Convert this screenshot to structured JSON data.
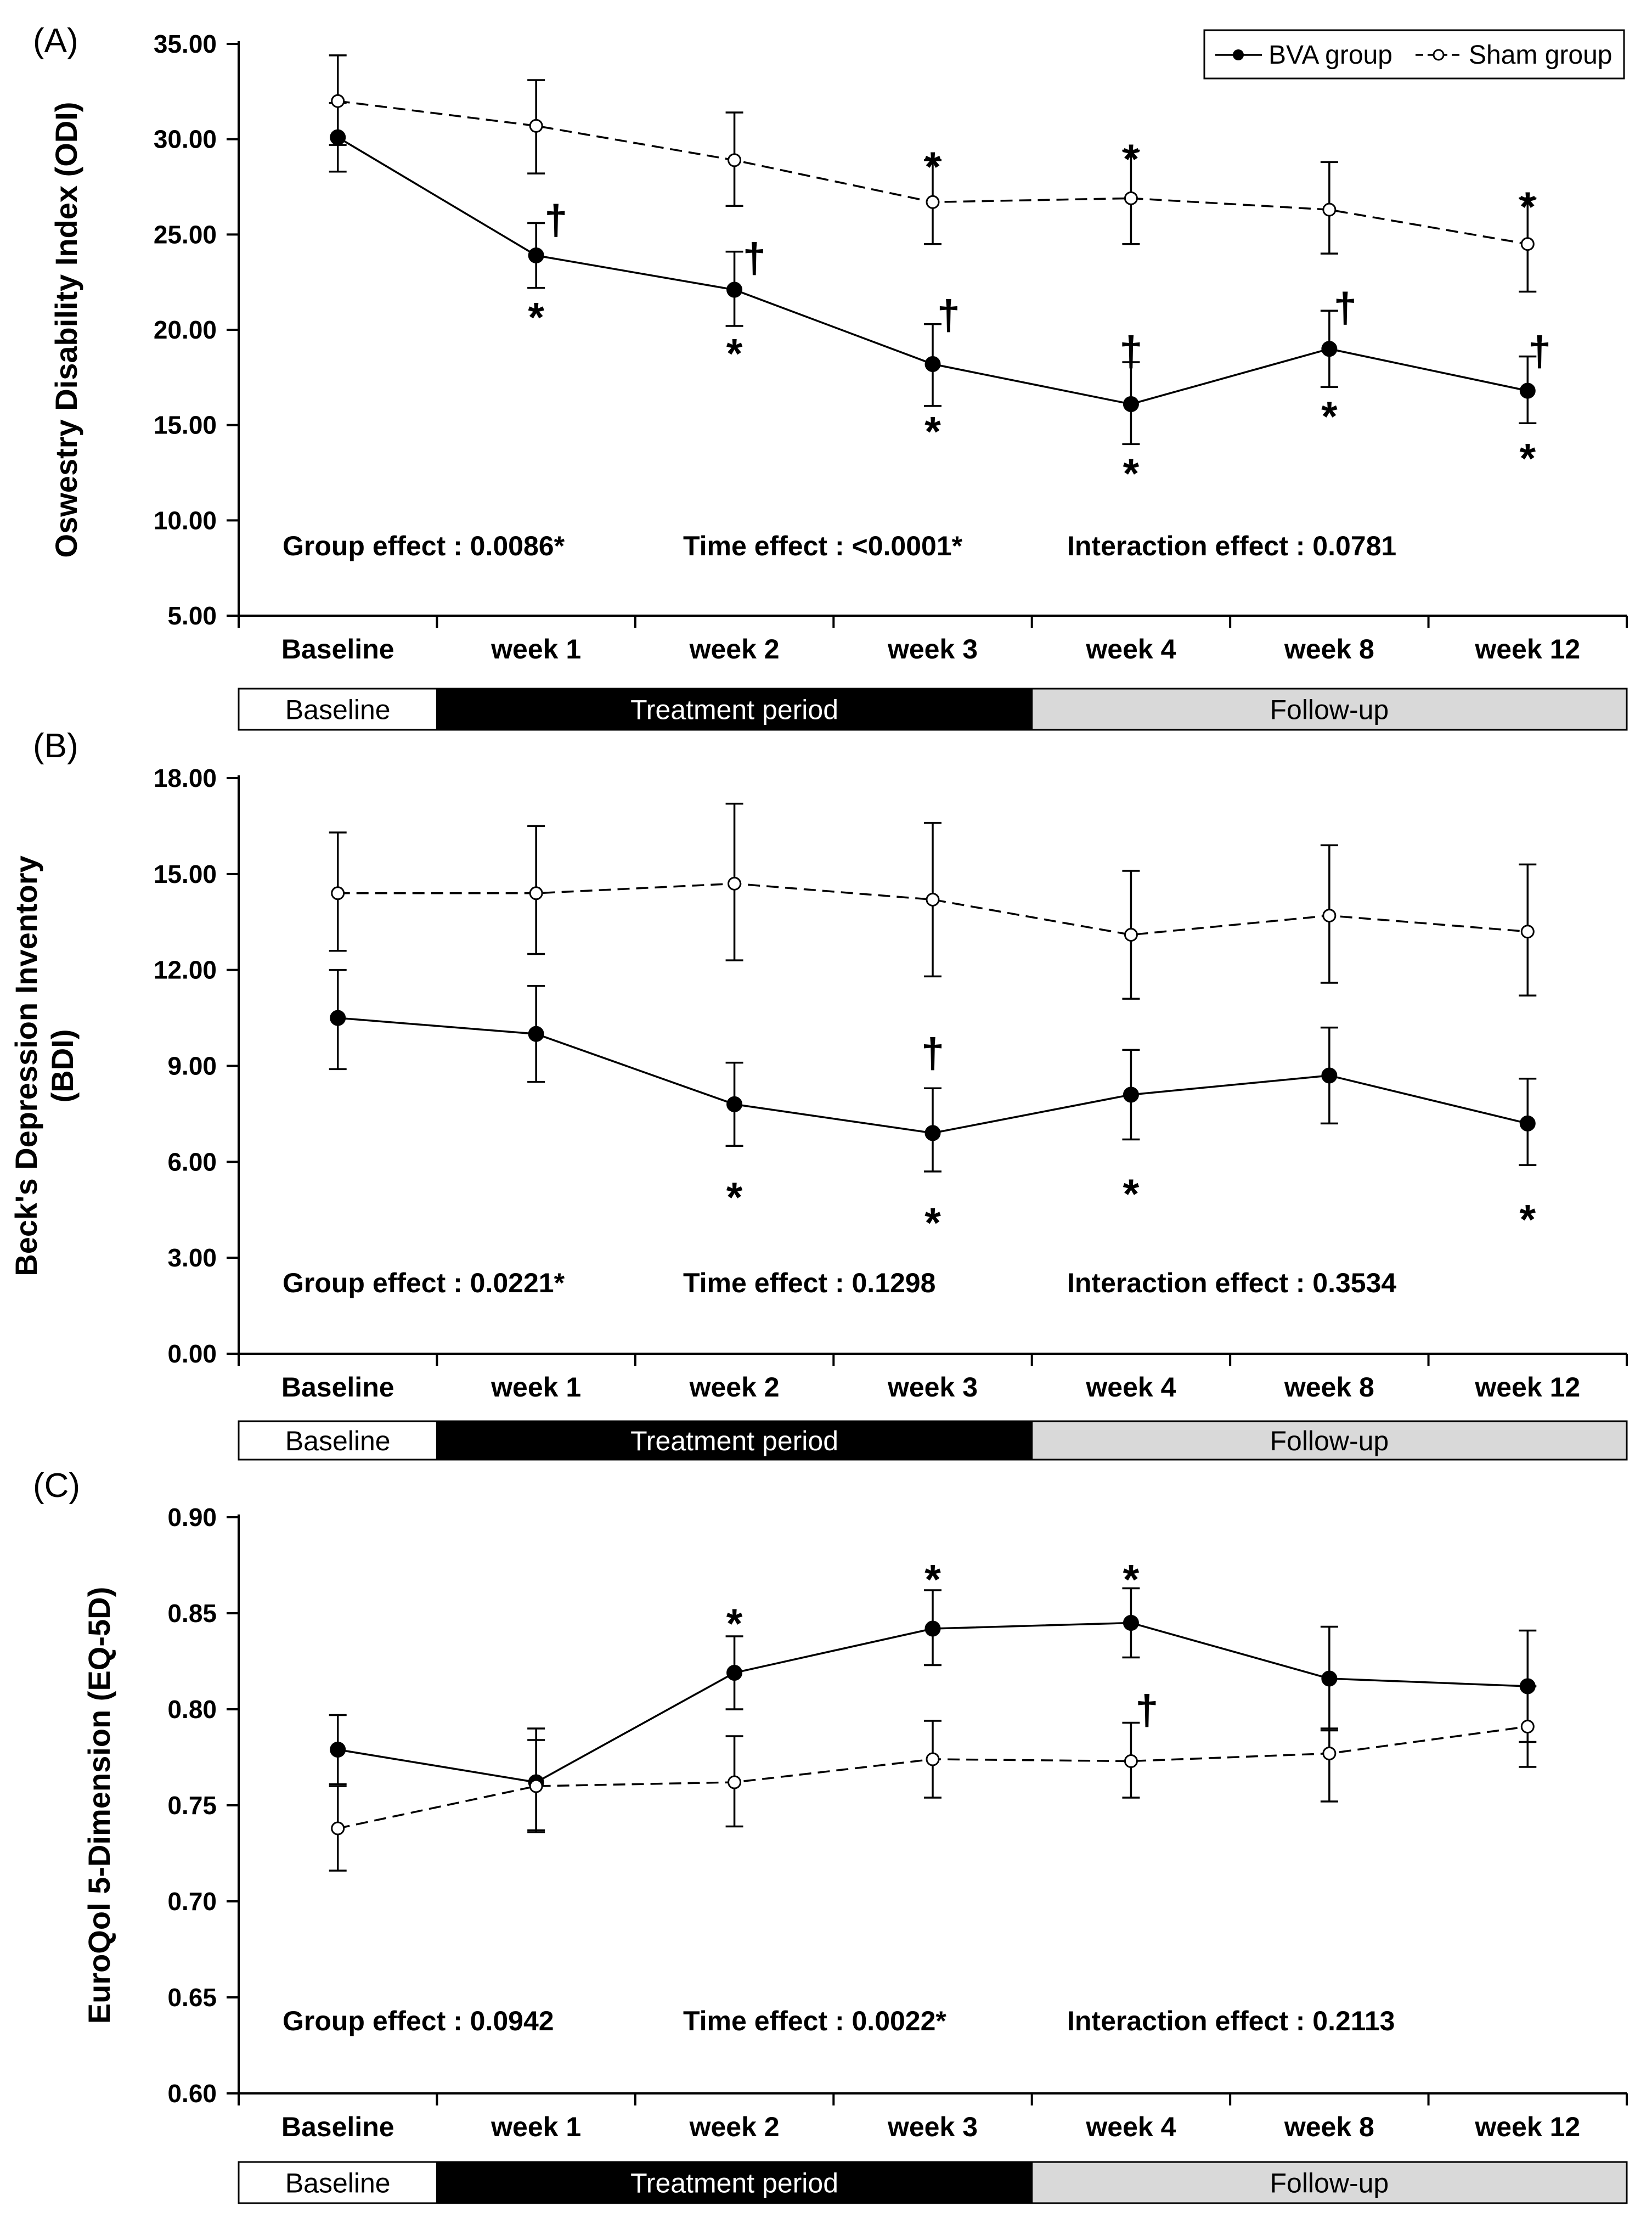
{
  "legend": {
    "bva": "BVA group",
    "sham": "Sham group"
  },
  "colors": {
    "line": "#000000",
    "baseline_band": "#ffffff",
    "treatment_band": "#000000",
    "followup_band": "#d9d9d9"
  },
  "chart_data": [
    {
      "panel_label": "(A)",
      "type": "line",
      "ylabel": "Oswestry Disability Index (ODI)",
      "ylabel_lines": [
        "Oswestry Disability Index (ODI)"
      ],
      "ylim": [
        5,
        35
      ],
      "yticks": [
        5,
        10,
        15,
        20,
        25,
        30,
        35
      ],
      "ytick_labels": [
        "5.00",
        "10.00",
        "15.00",
        "20.00",
        "25.00",
        "30.00",
        "35.00"
      ],
      "categories": [
        "Baseline",
        "week 1",
        "week 2",
        "week 3",
        "week 4",
        "week 8",
        "week 12"
      ],
      "series": [
        {
          "name": "BVA group",
          "values": [
            30.1,
            23.9,
            22.1,
            18.2,
            16.1,
            19.0,
            16.8
          ],
          "err_low": [
            28.3,
            22.2,
            20.2,
            16.0,
            14.0,
            17.0,
            15.1
          ],
          "err_high": [
            31.9,
            25.6,
            24.1,
            20.3,
            18.3,
            21.0,
            18.6
          ]
        },
        {
          "name": "Sham group",
          "values": [
            32.0,
            30.7,
            28.9,
            26.7,
            26.9,
            26.3,
            24.5
          ],
          "err_low": [
            29.7,
            28.2,
            26.5,
            24.5,
            24.5,
            24.0,
            22.0
          ],
          "err_high": [
            34.4,
            33.1,
            31.4,
            28.9,
            29.4,
            28.8,
            26.9
          ]
        }
      ],
      "markers": [
        {
          "label": "*",
          "index": 1,
          "value": 21.0
        },
        {
          "label": "*",
          "index": 2,
          "value": 19.1
        },
        {
          "label": "*",
          "index": 3,
          "value": 15.0
        },
        {
          "label": "*",
          "index": 4,
          "value": 12.8
        },
        {
          "label": "*",
          "index": 5,
          "value": 15.8
        },
        {
          "label": "*",
          "index": 6,
          "value": 13.6
        },
        {
          "label": "*",
          "index": 3,
          "value": 28.9
        },
        {
          "label": "*",
          "index": 4,
          "value": 29.3
        },
        {
          "label": "*",
          "index": 6,
          "value": 26.8
        },
        {
          "label": "†",
          "index": 1,
          "value": 25.6,
          "dx": 0.1
        },
        {
          "label": "†",
          "index": 2,
          "value": 23.6,
          "dx": 0.1
        },
        {
          "label": "†",
          "index": 3,
          "value": 20.6,
          "dx": 0.08
        },
        {
          "label": "†",
          "index": 4,
          "value": 18.7,
          "dx": 0.0
        },
        {
          "label": "†",
          "index": 5,
          "value": 21.0,
          "dx": 0.08
        },
        {
          "label": "†",
          "index": 6,
          "value": 18.7,
          "dx": 0.06
        }
      ],
      "effects": [
        "Group effect : 0.0086*",
        "Time effect : <0.0001*",
        "Interaction effect : 0.0781"
      ],
      "periods": [
        "Baseline",
        "Treatment period",
        "Follow-up"
      ]
    },
    {
      "panel_label": "(B)",
      "type": "line",
      "ylabel": "Beck's Depression Inventory (BDI)",
      "ylabel_lines": [
        "Beck's Depression Inventory",
        "(BDI)"
      ],
      "ylim": [
        0,
        18
      ],
      "yticks": [
        0,
        3,
        6,
        9,
        12,
        15,
        18
      ],
      "ytick_labels": [
        "0.00",
        "3.00",
        "6.00",
        "9.00",
        "12.00",
        "15.00",
        "18.00"
      ],
      "categories": [
        "Baseline",
        "week 1",
        "week 2",
        "week 3",
        "week 4",
        "week 8",
        "week 12"
      ],
      "series": [
        {
          "name": "BVA group",
          "values": [
            10.5,
            10.0,
            7.8,
            6.9,
            8.1,
            8.7,
            7.2
          ],
          "err_low": [
            8.9,
            8.5,
            6.5,
            5.7,
            6.7,
            7.2,
            5.9
          ],
          "err_high": [
            12.0,
            11.5,
            9.1,
            8.3,
            9.5,
            10.2,
            8.6
          ]
        },
        {
          "name": "Sham group",
          "values": [
            14.4,
            14.4,
            14.7,
            14.2,
            13.1,
            13.7,
            13.2
          ],
          "err_low": [
            12.6,
            12.5,
            12.3,
            11.8,
            11.1,
            11.6,
            11.2
          ],
          "err_high": [
            16.3,
            16.5,
            17.2,
            16.6,
            15.1,
            15.9,
            15.3
          ]
        }
      ],
      "markers": [
        {
          "label": "*",
          "index": 2,
          "value": 5.1
        },
        {
          "label": "*",
          "index": 3,
          "value": 4.3
        },
        {
          "label": "*",
          "index": 4,
          "value": 5.2
        },
        {
          "label": "*",
          "index": 6,
          "value": 4.4
        },
        {
          "label": "†",
          "index": 3,
          "value": 9.3,
          "dx": 0.0
        }
      ],
      "effects": [
        "Group effect : 0.0221*",
        "Time effect : 0.1298",
        "Interaction effect : 0.3534"
      ],
      "periods": [
        "Baseline",
        "Treatment period",
        "Follow-up"
      ]
    },
    {
      "panel_label": "(C)",
      "type": "line",
      "ylabel": "EuroQol 5-Dimension (EQ-5D)",
      "ylabel_lines": [
        "EuroQol 5-Dimension (EQ-5D)"
      ],
      "ylim": [
        0.6,
        0.9
      ],
      "yticks": [
        0.6,
        0.65,
        0.7,
        0.75,
        0.8,
        0.85,
        0.9
      ],
      "ytick_labels": [
        "0.60",
        "0.65",
        "0.70",
        "0.75",
        "0.80",
        "0.85",
        "0.90"
      ],
      "categories": [
        "Baseline",
        "week 1",
        "week 2",
        "week 3",
        "week 4",
        "week 8",
        "week 12"
      ],
      "series": [
        {
          "name": "BVA group",
          "values": [
            0.779,
            0.762,
            0.819,
            0.842,
            0.845,
            0.816,
            0.812
          ],
          "err_low": [
            0.761,
            0.737,
            0.8,
            0.823,
            0.827,
            0.789,
            0.783
          ],
          "err_high": [
            0.797,
            0.79,
            0.838,
            0.862,
            0.863,
            0.843,
            0.841
          ]
        },
        {
          "name": "Sham group",
          "values": [
            0.738,
            0.76,
            0.762,
            0.774,
            0.773,
            0.777,
            0.791
          ],
          "err_low": [
            0.716,
            0.736,
            0.739,
            0.754,
            0.754,
            0.752,
            0.77
          ],
          "err_high": [
            0.76,
            0.784,
            0.786,
            0.794,
            0.793,
            0.79,
            0.812
          ]
        }
      ],
      "markers": [
        {
          "label": "*",
          "index": 2,
          "value": 0.848
        },
        {
          "label": "*",
          "index": 3,
          "value": 0.871
        },
        {
          "label": "*",
          "index": 4,
          "value": 0.871
        },
        {
          "label": "†",
          "index": 4,
          "value": 0.798,
          "dx": 0.08
        }
      ],
      "effects": [
        "Group effect : 0.0942",
        "Time effect : 0.0022*",
        "Interaction effect : 0.2113"
      ],
      "periods": [
        "Baseline",
        "Treatment period",
        "Follow-up"
      ]
    }
  ]
}
